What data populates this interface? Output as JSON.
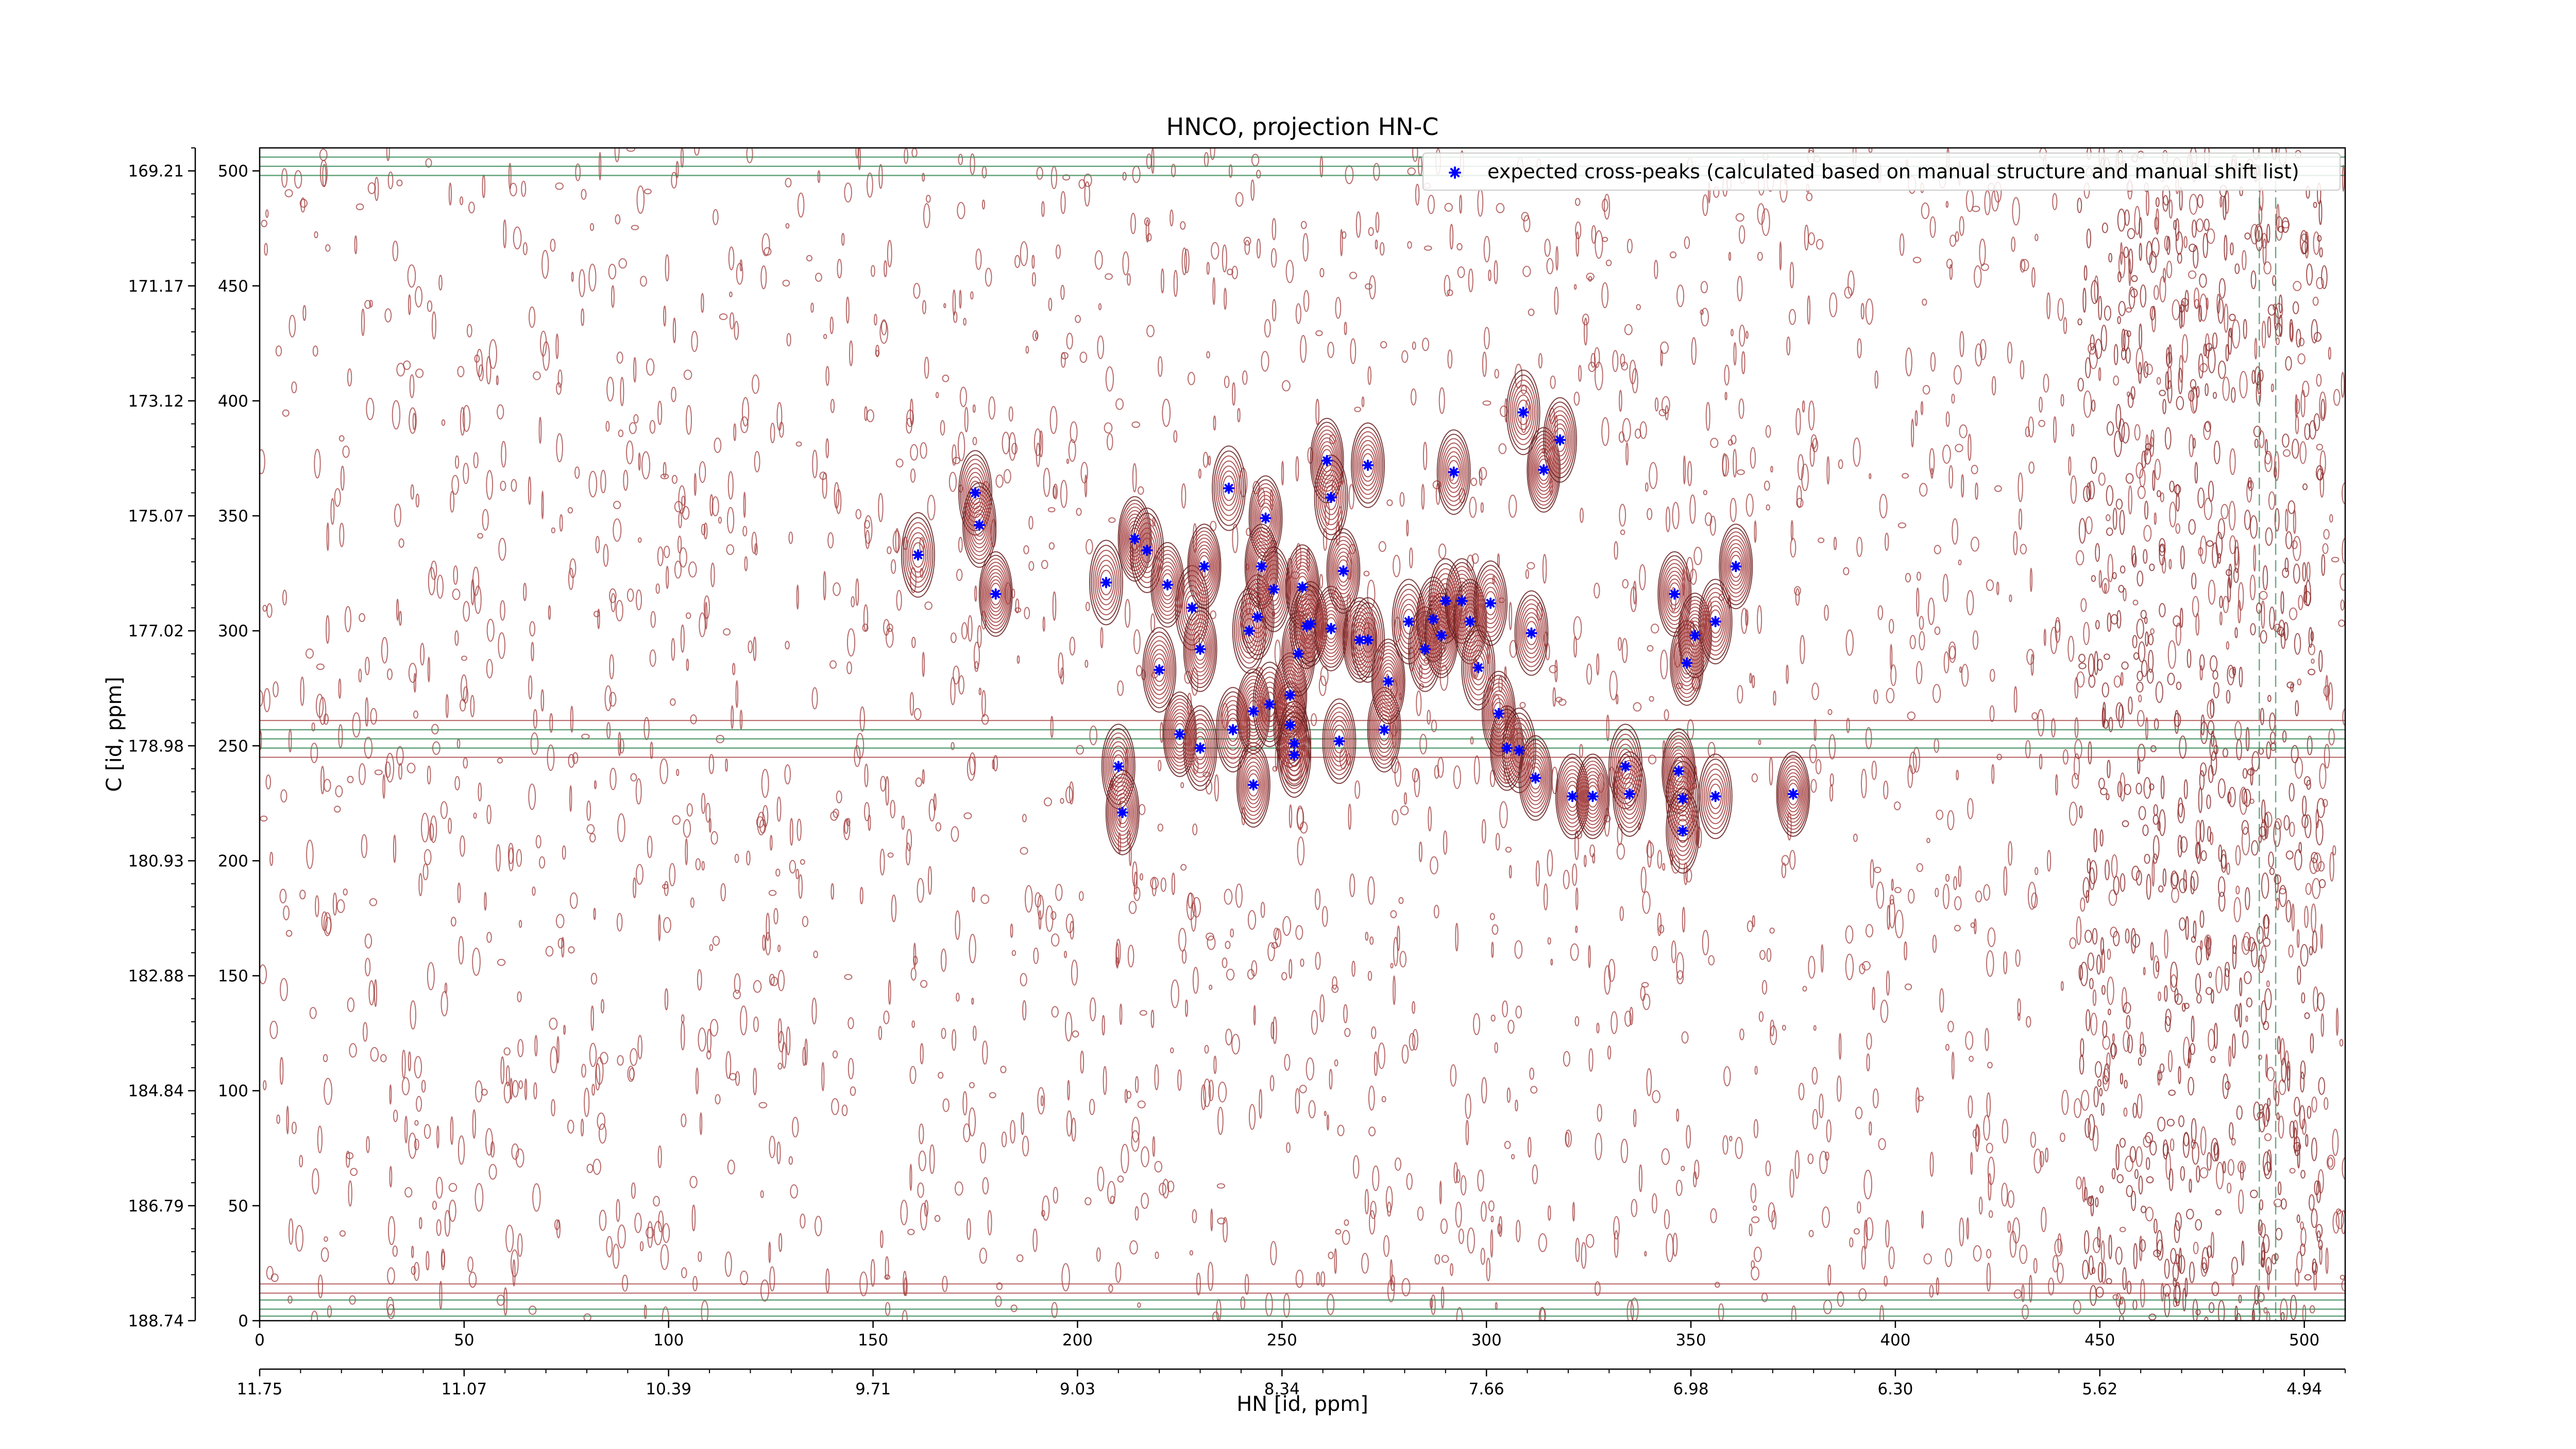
{
  "chart_data": {
    "type": "scatter",
    "title": "HNCO, projection HN-C",
    "xlabel": "HN [id, ppm]",
    "ylabel": "C [id, ppm]",
    "xlim": [
      0,
      510
    ],
    "ylim": [
      0,
      510
    ],
    "x_index_ticks": [
      "0",
      "50",
      "100",
      "150",
      "200",
      "250",
      "300",
      "350",
      "400",
      "450",
      "500"
    ],
    "x_ppm_ticks": [
      "11.75",
      "11.07",
      "10.39",
      "9.71",
      "9.03",
      "8.34",
      "7.66",
      "6.98",
      "6.30",
      "5.62",
      "4.94"
    ],
    "y_index_ticks": [
      "0",
      "50",
      "100",
      "150",
      "200",
      "250",
      "300",
      "350",
      "400",
      "450",
      "500"
    ],
    "y_ppm_ticks": [
      "188.74",
      "186.79",
      "184.84",
      "182.88",
      "180.93",
      "178.98",
      "177.02",
      "175.07",
      "173.12",
      "171.17",
      "169.21"
    ],
    "legend_position": "top-right",
    "series": [
      {
        "name": "expected cross-peaks (calculated based on manual structure and manual shift list)",
        "color": "#0000ff",
        "marker": "star",
        "points": [
          [
            161,
            333
          ],
          [
            175,
            360
          ],
          [
            176,
            346
          ],
          [
            180,
            316
          ],
          [
            207,
            321
          ],
          [
            210,
            241
          ],
          [
            211,
            221
          ],
          [
            214,
            340
          ],
          [
            217,
            335
          ],
          [
            220,
            283
          ],
          [
            222,
            320
          ],
          [
            225,
            255
          ],
          [
            228,
            310
          ],
          [
            230,
            249
          ],
          [
            230,
            292
          ],
          [
            231,
            328
          ],
          [
            237,
            362
          ],
          [
            238,
            257
          ],
          [
            243,
            233
          ],
          [
            243,
            265
          ],
          [
            242,
            300
          ],
          [
            244,
            306
          ],
          [
            246,
            349
          ],
          [
            245,
            328
          ],
          [
            247,
            268
          ],
          [
            248,
            318
          ],
          [
            252,
            259
          ],
          [
            252,
            272
          ],
          [
            253,
            251
          ],
          [
            253,
            246
          ],
          [
            254,
            290
          ],
          [
            255,
            319
          ],
          [
            256,
            302
          ],
          [
            257,
            303
          ],
          [
            261,
            374
          ],
          [
            262,
            301
          ],
          [
            262,
            358
          ],
          [
            264,
            252
          ],
          [
            265,
            326
          ],
          [
            269,
            296
          ],
          [
            271,
            296
          ],
          [
            271,
            372
          ],
          [
            275,
            257
          ],
          [
            276,
            278
          ],
          [
            281,
            304
          ],
          [
            285,
            292
          ],
          [
            287,
            305
          ],
          [
            289,
            298
          ],
          [
            290,
            313
          ],
          [
            292,
            369
          ],
          [
            294,
            313
          ],
          [
            296,
            304
          ],
          [
            298,
            284
          ],
          [
            301,
            312
          ],
          [
            303,
            264
          ],
          [
            305,
            249
          ],
          [
            308,
            248
          ],
          [
            311,
            299
          ],
          [
            312,
            236
          ],
          [
            314,
            370
          ],
          [
            309,
            395
          ],
          [
            318,
            383
          ],
          [
            321,
            228
          ],
          [
            326,
            228
          ],
          [
            334,
            241
          ],
          [
            335,
            229
          ],
          [
            346,
            316
          ],
          [
            347,
            239
          ],
          [
            348,
            227
          ],
          [
            348,
            213
          ],
          [
            349,
            286
          ],
          [
            351,
            298
          ],
          [
            356,
            228
          ],
          [
            356,
            304
          ],
          [
            361,
            328
          ],
          [
            375,
            229
          ]
        ]
      }
    ]
  }
}
